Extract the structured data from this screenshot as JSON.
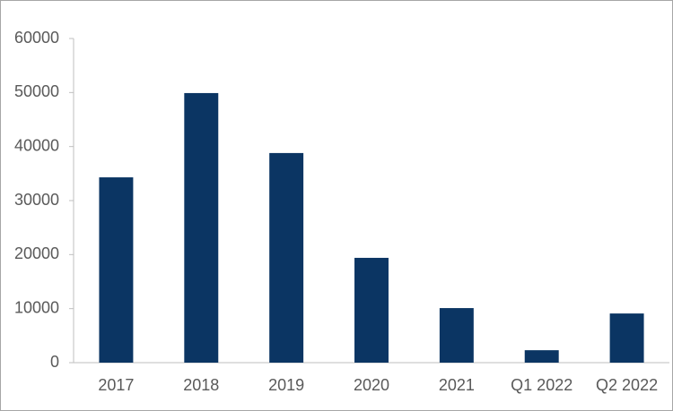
{
  "chart_data": {
    "type": "bar",
    "categories": [
      "2017",
      "2018",
      "2019",
      "2020",
      "2021",
      "Q1 2022",
      "Q2 2022"
    ],
    "values": [
      34300,
      49900,
      38800,
      19400,
      10100,
      2300,
      9100
    ],
    "color": "#0b3563",
    "ylim": [
      0,
      60000
    ],
    "yticks": [
      0,
      10000,
      20000,
      30000,
      40000,
      50000,
      60000
    ],
    "grid": false
  }
}
